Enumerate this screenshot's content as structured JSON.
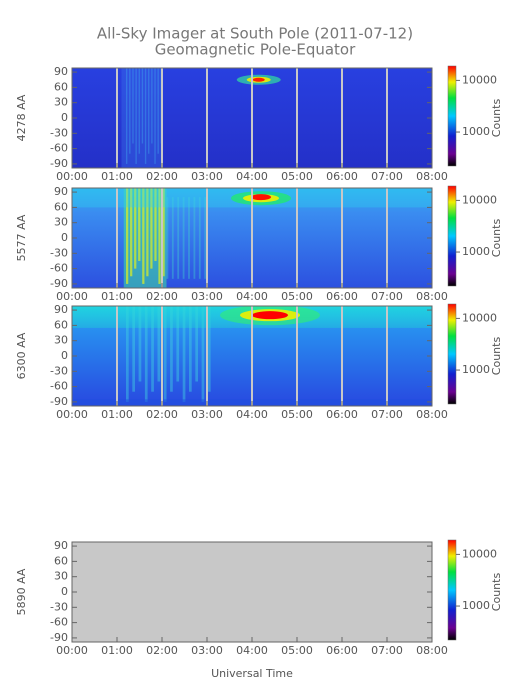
{
  "chart_data": [
    {
      "type": "heatmap",
      "title": "All-Sky Imager at South Pole (2011-07-12)",
      "subtitle": "Geomagnetic Pole-Equator",
      "ylabel": "4278 AA",
      "colorbar_label": "Counts",
      "xlim": [
        0,
        8
      ],
      "xticks": [
        {
          "value": 0,
          "label": "00:00"
        },
        {
          "value": 1,
          "label": "01:00"
        },
        {
          "value": 2,
          "label": "02:00"
        },
        {
          "value": 3,
          "label": "03:00"
        },
        {
          "value": 4,
          "label": "04:00"
        },
        {
          "value": 5,
          "label": "05:00"
        },
        {
          "value": 6,
          "label": "06:00"
        },
        {
          "value": 7,
          "label": "07:00"
        },
        {
          "value": 8,
          "label": "08:00"
        }
      ],
      "ylim": [
        -98,
        98
      ],
      "yticks": [
        -90,
        -60,
        -30,
        0,
        30,
        60,
        90
      ],
      "clim": [
        220,
        19000
      ],
      "clog": true,
      "cticks": [
        1000,
        10000
      ],
      "grid": true
    },
    {
      "type": "heatmap",
      "ylabel": "5577 AA",
      "colorbar_label": "Counts",
      "xlim": [
        0,
        8
      ],
      "xticks": [
        {
          "value": 0,
          "label": "00:00"
        },
        {
          "value": 1,
          "label": "01:00"
        },
        {
          "value": 2,
          "label": "02:00"
        },
        {
          "value": 3,
          "label": "03:00"
        },
        {
          "value": 4,
          "label": "04:00"
        },
        {
          "value": 5,
          "label": "05:00"
        },
        {
          "value": 6,
          "label": "06:00"
        },
        {
          "value": 7,
          "label": "07:00"
        },
        {
          "value": 8,
          "label": "08:00"
        }
      ],
      "ylim": [
        -98,
        98
      ],
      "yticks": [
        -90,
        -60,
        -30,
        0,
        30,
        60,
        90
      ],
      "clim": [
        220,
        19000
      ],
      "clog": true,
      "cticks": [
        1000,
        10000
      ],
      "grid": true
    },
    {
      "type": "heatmap",
      "ylabel": "6300 AA",
      "colorbar_label": "Counts",
      "xlim": [
        0,
        8
      ],
      "xticks": [
        {
          "value": 0,
          "label": "00:00"
        },
        {
          "value": 1,
          "label": "01:00"
        },
        {
          "value": 2,
          "label": "02:00"
        },
        {
          "value": 3,
          "label": "03:00"
        },
        {
          "value": 4,
          "label": "04:00"
        },
        {
          "value": 5,
          "label": "05:00"
        },
        {
          "value": 6,
          "label": "06:00"
        },
        {
          "value": 7,
          "label": "07:00"
        },
        {
          "value": 8,
          "label": "08:00"
        }
      ],
      "ylim": [
        -98,
        98
      ],
      "yticks": [
        -90,
        -60,
        -30,
        0,
        30,
        60,
        90
      ],
      "clim": [
        220,
        19000
      ],
      "clog": true,
      "cticks": [
        1000,
        10000
      ],
      "grid": true
    },
    {
      "type": "heatmap",
      "ylabel": "5890 AA",
      "colorbar_label": "Counts",
      "xlabel": "Universal Time",
      "xlim": [
        0,
        8
      ],
      "xticks": [
        {
          "value": 0,
          "label": "00:00"
        },
        {
          "value": 1,
          "label": "01:00"
        },
        {
          "value": 2,
          "label": "02:00"
        },
        {
          "value": 3,
          "label": "03:00"
        },
        {
          "value": 4,
          "label": "04:00"
        },
        {
          "value": 5,
          "label": "05:00"
        },
        {
          "value": 6,
          "label": "06:00"
        },
        {
          "value": 7,
          "label": "07:00"
        },
        {
          "value": 8,
          "label": "08:00"
        }
      ],
      "ylim": [
        -98,
        98
      ],
      "yticks": [
        -90,
        -60,
        -30,
        0,
        30,
        60,
        90
      ],
      "clim": [
        220,
        19000
      ],
      "clog": true,
      "cticks": [
        1000,
        10000
      ],
      "grid": true
    }
  ]
}
